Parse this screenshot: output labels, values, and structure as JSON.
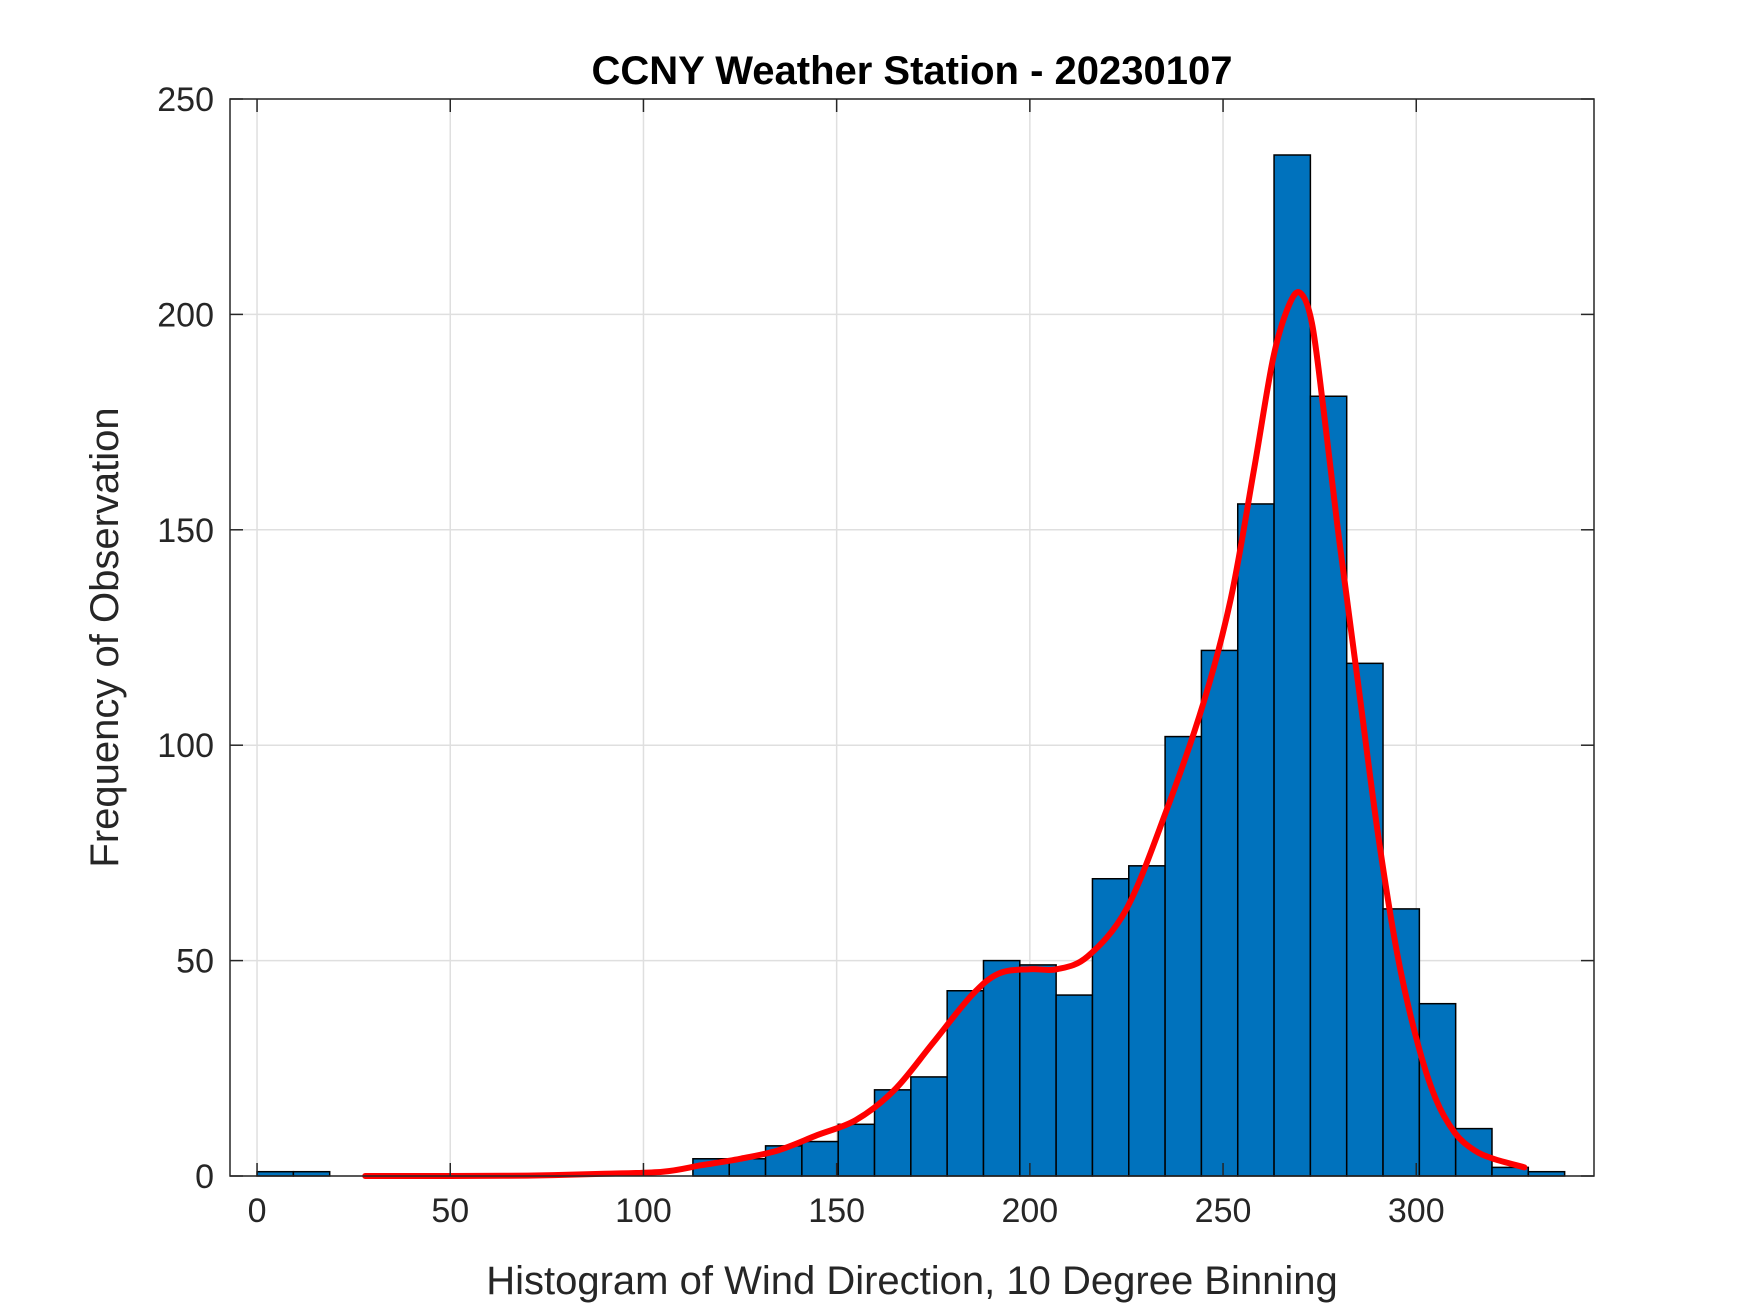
{
  "chart_data": {
    "type": "bar",
    "title": "CCNY Weather Station - 20230107",
    "xlabel": "Histogram of Wind Direction, 10 Degree Binning",
    "ylabel": "Frequency of Observation",
    "xlim": [
      -7,
      346
    ],
    "ylim": [
      0,
      250
    ],
    "xticks": [
      0,
      50,
      100,
      150,
      200,
      250,
      300
    ],
    "yticks": [
      0,
      50,
      100,
      150,
      200,
      250
    ],
    "grid": true,
    "bin_width": 9.4,
    "bins": [
      {
        "x0": 0.0,
        "value": 1
      },
      {
        "x0": 9.4,
        "value": 1
      },
      {
        "x0": 18.8,
        "value": 0
      },
      {
        "x0": 28.2,
        "value": 0
      },
      {
        "x0": 37.6,
        "value": 0
      },
      {
        "x0": 47.0,
        "value": 0
      },
      {
        "x0": 56.4,
        "value": 0
      },
      {
        "x0": 65.8,
        "value": 0
      },
      {
        "x0": 75.2,
        "value": 0
      },
      {
        "x0": 84.6,
        "value": 0
      },
      {
        "x0": 94.0,
        "value": 0
      },
      {
        "x0": 103.4,
        "value": 0
      },
      {
        "x0": 112.8,
        "value": 4
      },
      {
        "x0": 122.2,
        "value": 4
      },
      {
        "x0": 131.6,
        "value": 7
      },
      {
        "x0": 141.0,
        "value": 8
      },
      {
        "x0": 150.4,
        "value": 12
      },
      {
        "x0": 159.8,
        "value": 20
      },
      {
        "x0": 169.2,
        "value": 23
      },
      {
        "x0": 178.6,
        "value": 43
      },
      {
        "x0": 188.0,
        "value": 50
      },
      {
        "x0": 197.4,
        "value": 49
      },
      {
        "x0": 206.8,
        "value": 42
      },
      {
        "x0": 216.2,
        "value": 69
      },
      {
        "x0": 225.6,
        "value": 72
      },
      {
        "x0": 235.0,
        "value": 102
      },
      {
        "x0": 244.4,
        "value": 122
      },
      {
        "x0": 253.8,
        "value": 156
      },
      {
        "x0": 263.2,
        "value": 237
      },
      {
        "x0": 272.6,
        "value": 181
      },
      {
        "x0": 282.0,
        "value": 119
      },
      {
        "x0": 291.4,
        "value": 62
      },
      {
        "x0": 300.8,
        "value": 40
      },
      {
        "x0": 310.2,
        "value": 11
      },
      {
        "x0": 319.6,
        "value": 2
      },
      {
        "x0": 329.0,
        "value": 1
      }
    ],
    "fit_curve": {
      "x": [
        28,
        50,
        70,
        90,
        105,
        115,
        125,
        135,
        145,
        155,
        165,
        175,
        185,
        192,
        200,
        207,
        215,
        225,
        235,
        245,
        252,
        258,
        263,
        267,
        270,
        273,
        276,
        280,
        285,
        290,
        295,
        300,
        305,
        310,
        315,
        320,
        328
      ],
      "y": [
        0,
        0,
        0.1,
        0.5,
        1,
        2.5,
        4,
        6,
        9.5,
        13,
        20,
        31,
        42,
        47,
        48,
        48,
        51,
        62,
        84,
        110,
        134,
        164,
        190,
        202,
        205,
        198,
        178,
        148,
        114,
        80,
        52,
        32,
        18,
        10,
        6,
        4,
        2
      ]
    },
    "colors": {
      "bar_fill": "#0072bd",
      "bar_edge": "#000000",
      "curve": "#ff0000",
      "grid": "#dfdfdf",
      "axes": "#262626"
    }
  }
}
